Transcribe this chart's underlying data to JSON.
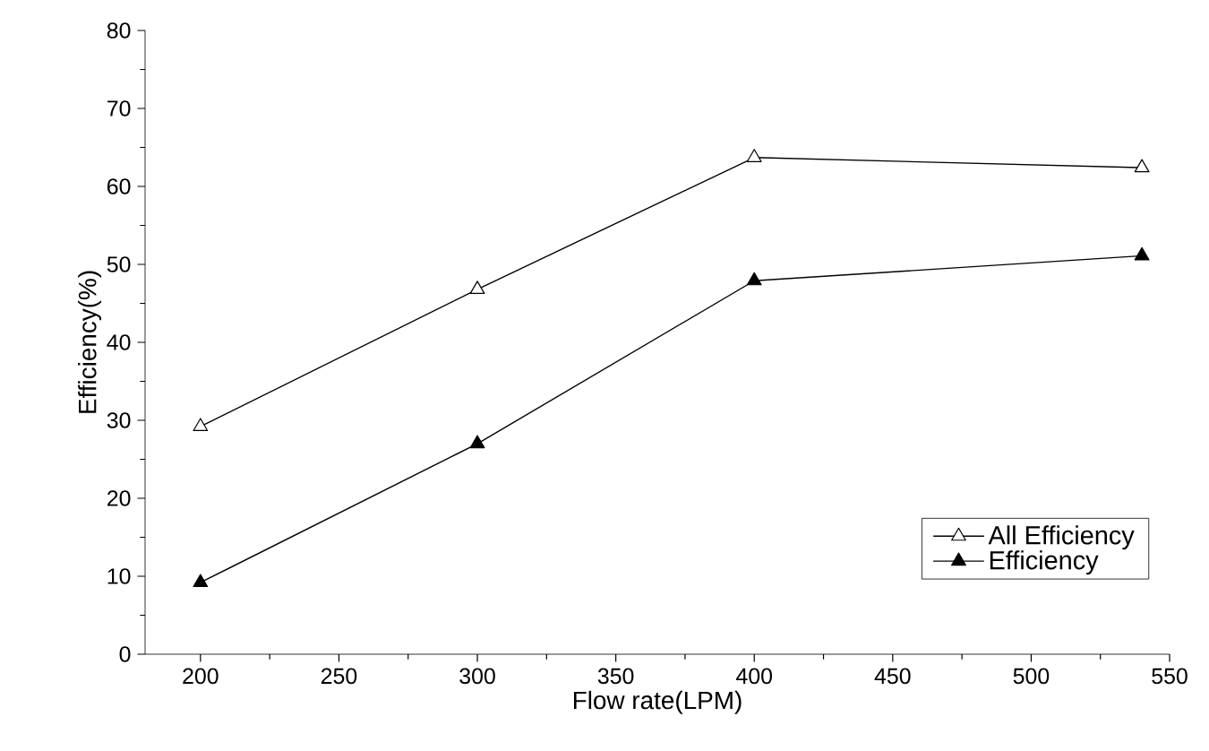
{
  "chart_data": {
    "type": "line",
    "xlabel": "Flow rate(LPM)",
    "ylabel": "Efficiency(%)",
    "x": [
      200,
      300,
      400,
      540
    ],
    "series": [
      {
        "name": "All Efficiency",
        "color": "#000000",
        "values": [
          29.2,
          46.8,
          63.7,
          62.4
        ]
      },
      {
        "name": "Efficiency",
        "color": "#000000",
        "values": [
          9.2,
          27.0,
          47.9,
          51.1
        ]
      }
    ],
    "xlim": [
      180,
      550
    ],
    "ylim": [
      0,
      80
    ],
    "xticks": [
      200,
      250,
      300,
      350,
      400,
      450,
      500,
      550
    ],
    "yticks": [
      0,
      10,
      20,
      30,
      40,
      50,
      60,
      70,
      80
    ],
    "marker": "triangle",
    "line_style": "solid",
    "grid": false,
    "legend": "bottom right"
  }
}
